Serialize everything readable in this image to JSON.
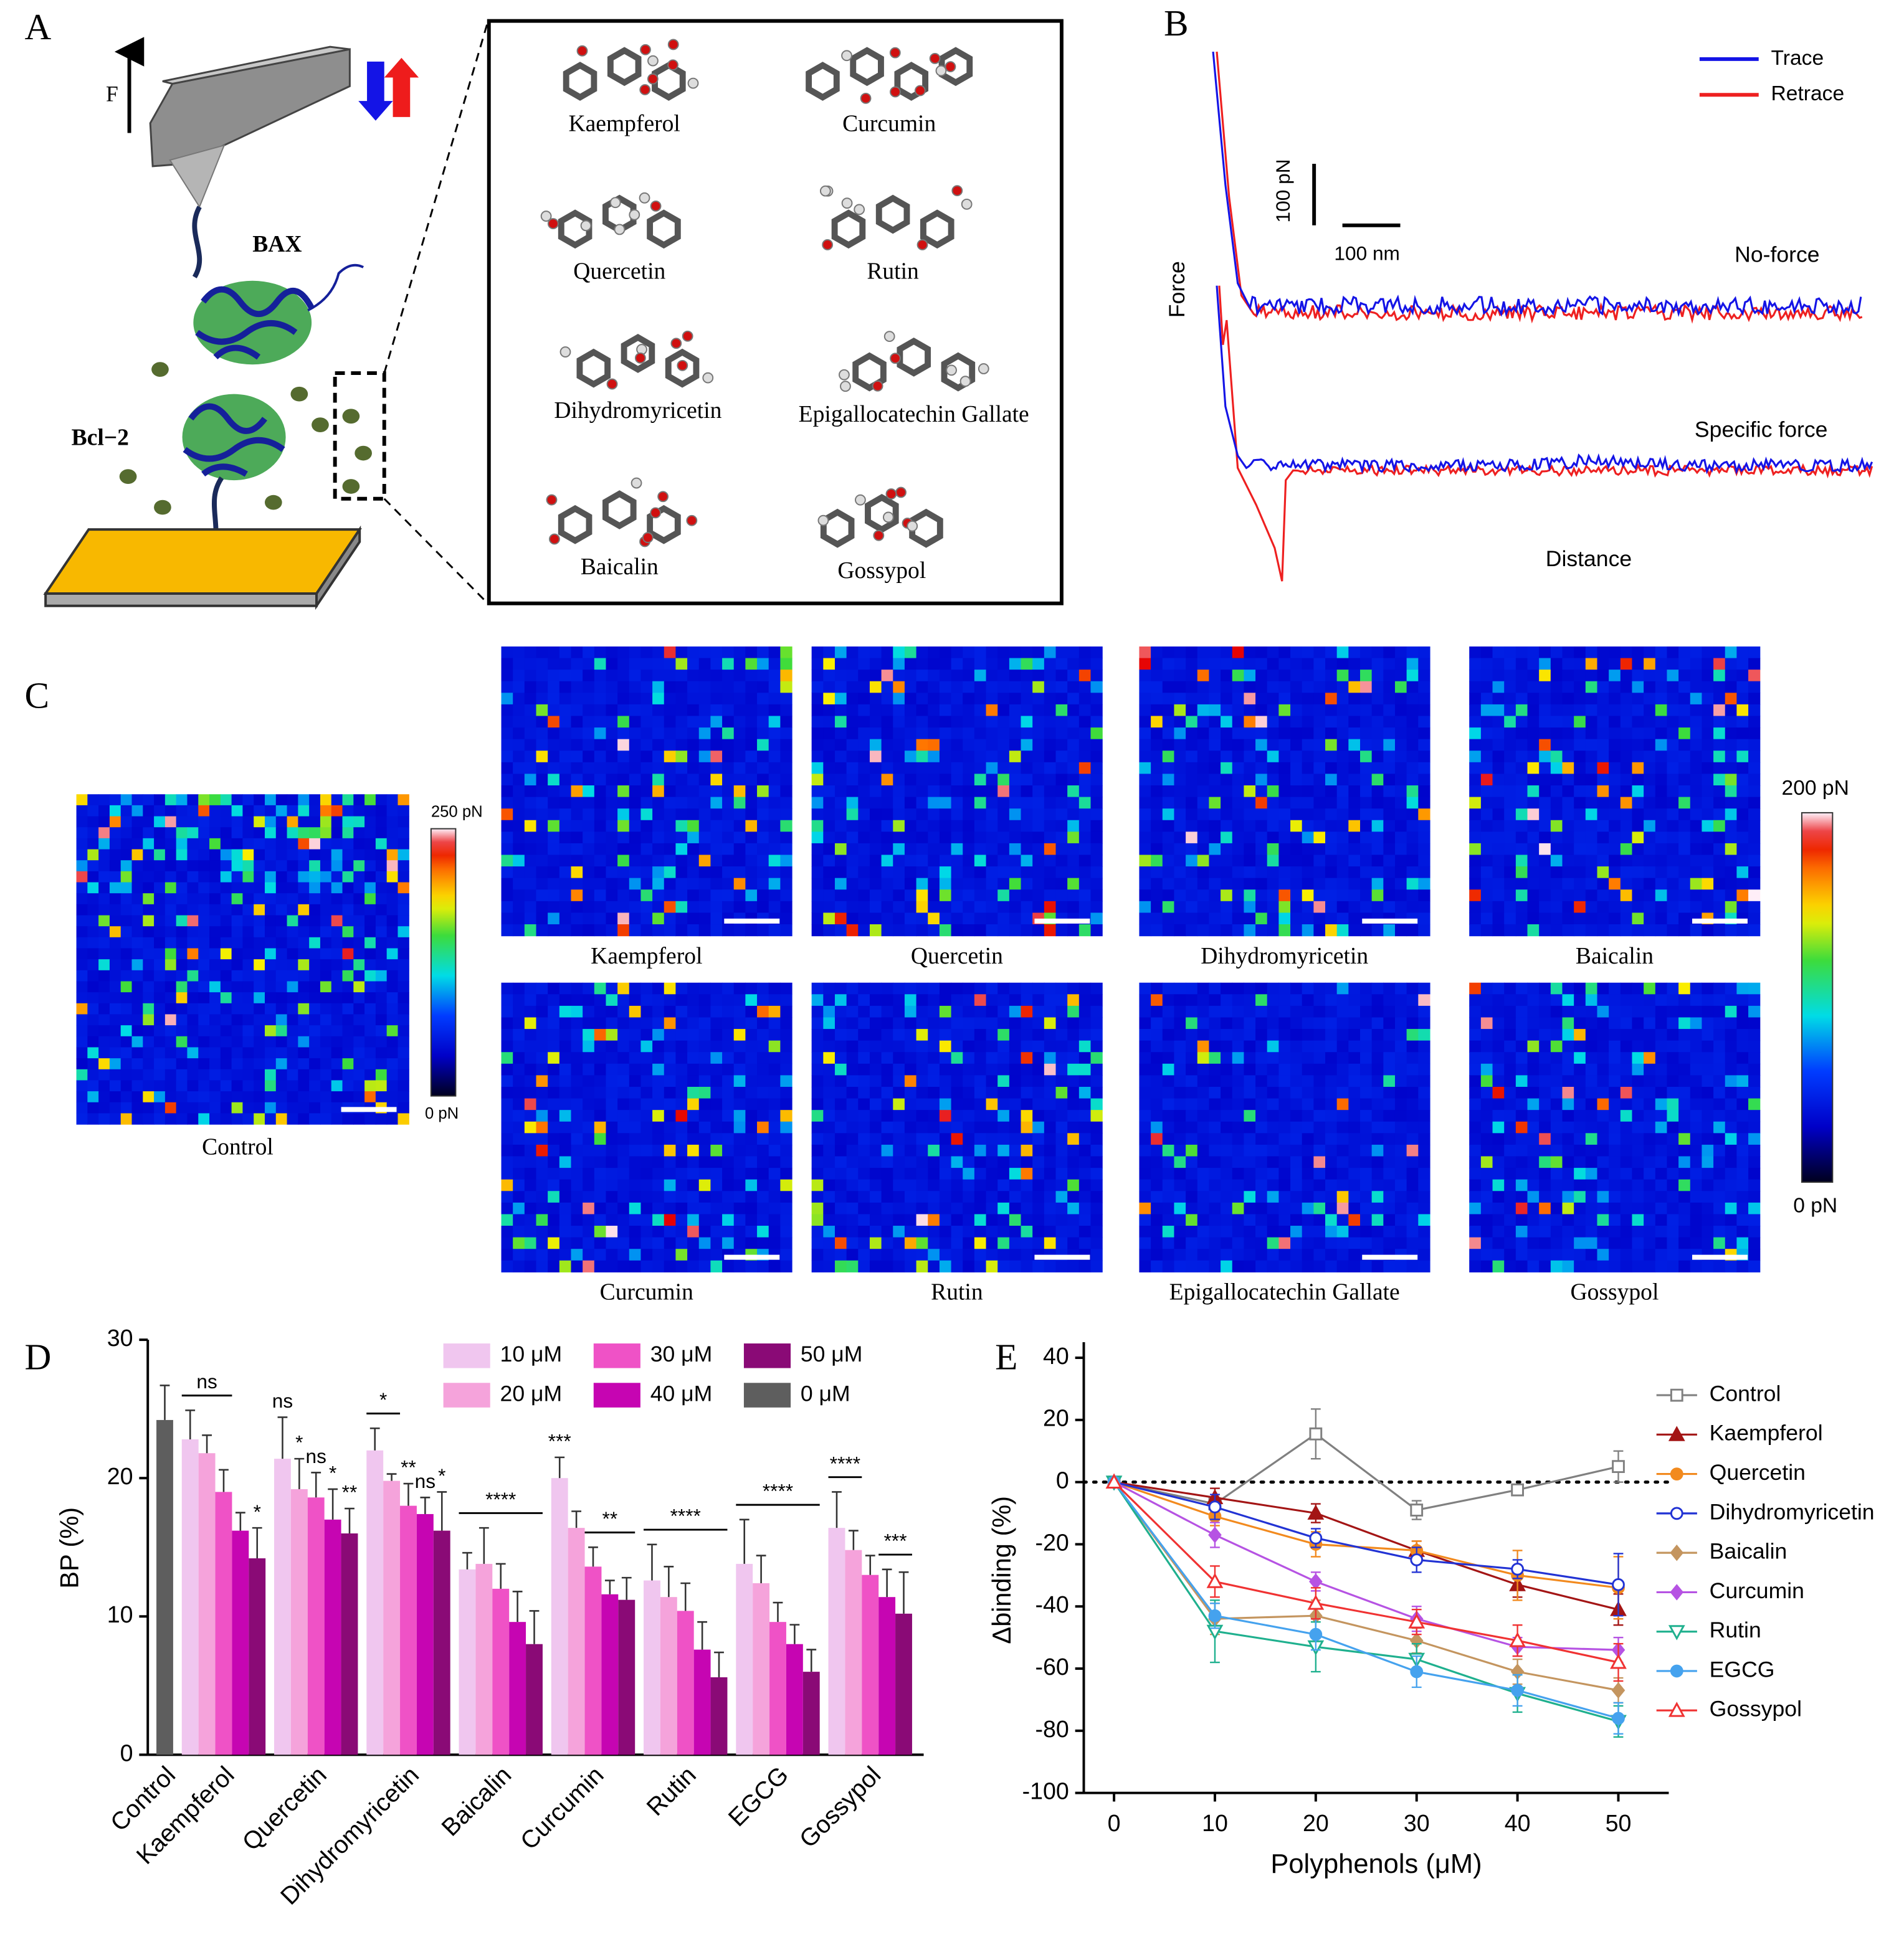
{
  "panels": {
    "a": "A",
    "b": "B",
    "c": "C",
    "d": "D",
    "e": "E"
  },
  "schematic": {
    "force": "F",
    "proteins": [
      "BAX",
      "Bcl−2"
    ],
    "compounds": [
      "Kaempferol",
      "Curcumin",
      "Quercetin",
      "Rutin",
      "Dihydromyricetin",
      "Epigallocatechin Gallate",
      "Baicalin",
      "Gossypol"
    ]
  },
  "force_curves": {
    "series": [
      {
        "name": "Trace",
        "color": "#1414e6"
      },
      {
        "name": "Retrace",
        "color": "#ee2020"
      }
    ],
    "scale_force": "100 pN",
    "scale_distance": "100 nm",
    "curves": [
      "No-force",
      "Specific force"
    ],
    "ylabel": "Force",
    "xlabel": "Distance"
  },
  "force_maps": {
    "control": {
      "name": "Control",
      "max": "250 pN",
      "min": "0 pN"
    },
    "maps": [
      "Kaempferol",
      "Quercetin",
      "Dihydromyricetin",
      "Baicalin",
      "Curcumin",
      "Rutin",
      "Epigallocatechin Gallate",
      "Gossypol"
    ],
    "max": "200 pN",
    "min": "0 pN"
  },
  "chart_data": [
    {
      "type": "bar",
      "ylabel": "BP (%)",
      "categories": [
        "Control",
        "Kaempferol",
        "Quercetin",
        "Dihydromyricetin",
        "Baicalin",
        "Curcumin",
        "Rutin",
        "EGCG",
        "Gossypol"
      ],
      "ylim": [
        0,
        30
      ],
      "yticks": [
        0,
        10,
        20,
        30
      ],
      "series": [
        {
          "name": "10 μM",
          "color": "#f0c6ef",
          "values": [
            null,
            22.8,
            21.4,
            22.0,
            13.4,
            20.0,
            12.6,
            13.8,
            16.4
          ],
          "errors": [
            null,
            2.1,
            3.0,
            1.6,
            1.2,
            1.5,
            2.6,
            3.2,
            2.6
          ]
        },
        {
          "name": "20 μM",
          "color": "#f5a3db",
          "values": [
            null,
            21.8,
            19.2,
            19.8,
            13.8,
            16.4,
            11.4,
            12.4,
            14.8
          ],
          "errors": [
            null,
            1.3,
            2.2,
            0.5,
            2.6,
            1.2,
            2.2,
            2.0,
            1.4
          ]
        },
        {
          "name": "30 μM",
          "color": "#ef52c6",
          "values": [
            null,
            19.0,
            18.6,
            18.0,
            12.0,
            13.6,
            10.4,
            9.6,
            13.0
          ],
          "errors": [
            null,
            1.6,
            1.8,
            1.6,
            1.8,
            1.4,
            2.0,
            1.4,
            1.4
          ]
        },
        {
          "name": "40 μM",
          "color": "#c605b2",
          "values": [
            null,
            16.2,
            17.0,
            17.4,
            9.6,
            11.6,
            7.6,
            8.0,
            11.4
          ],
          "errors": [
            null,
            1.3,
            2.2,
            1.2,
            2.2,
            1.0,
            2.0,
            1.4,
            2.0
          ]
        },
        {
          "name": "50 μM",
          "color": "#8a0a76",
          "values": [
            null,
            14.2,
            16.0,
            16.2,
            8.0,
            11.2,
            5.6,
            6.0,
            10.2
          ],
          "errors": [
            null,
            2.2,
            1.8,
            2.8,
            2.4,
            1.6,
            1.8,
            1.6,
            3.0
          ]
        },
        {
          "name": "0 μM",
          "color": "#5e5e5e",
          "values": [
            24.2,
            null,
            null,
            null,
            null,
            null,
            null,
            null,
            null
          ],
          "errors": [
            2.5,
            null,
            null,
            null,
            null,
            null,
            null,
            null,
            null
          ]
        }
      ],
      "annotations": [
        {
          "category": 1,
          "from": 0,
          "to": 2,
          "text": "ns"
        },
        {
          "category": 1,
          "from": 4,
          "to": 4,
          "text": "*"
        },
        {
          "category": 2,
          "from": 0,
          "to": 0,
          "text": "ns"
        },
        {
          "category": 2,
          "from": 1,
          "to": 1,
          "text": "*"
        },
        {
          "category": 2,
          "from": 2,
          "to": 2,
          "text": "ns"
        },
        {
          "category": 2,
          "from": 3,
          "to": 3,
          "text": "*"
        },
        {
          "category": 2,
          "from": 4,
          "to": 4,
          "text": "**"
        },
        {
          "category": 3,
          "from": 0,
          "to": 1,
          "text": "*"
        },
        {
          "category": 3,
          "from": 2,
          "to": 2,
          "text": "**"
        },
        {
          "category": 3,
          "from": 3,
          "to": 3,
          "text": "ns"
        },
        {
          "category": 3,
          "from": 4,
          "to": 4,
          "text": "*"
        },
        {
          "category": 4,
          "from": 0,
          "to": 4,
          "text": "****"
        },
        {
          "category": 5,
          "from": 0,
          "to": 0,
          "text": "***"
        },
        {
          "category": 5,
          "from": 2,
          "to": 4,
          "text": "**"
        },
        {
          "category": 6,
          "from": 0,
          "to": 4,
          "text": "****"
        },
        {
          "category": 7,
          "from": 0,
          "to": 4,
          "text": "****"
        },
        {
          "category": 8,
          "from": 0,
          "to": 1,
          "text": "****"
        },
        {
          "category": 8,
          "from": 3,
          "to": 4,
          "text": "***"
        }
      ]
    },
    {
      "type": "line",
      "xlabel": "Polyphenols (μM)",
      "ylabel": "Δbinding (%)",
      "x": [
        0,
        10,
        20,
        30,
        40,
        50
      ],
      "xlim": [
        -3,
        55
      ],
      "ylim": [
        -100,
        45
      ],
      "xticks": [
        0,
        10,
        20,
        30,
        40,
        50
      ],
      "yticks": [
        -100,
        -80,
        -60,
        -40,
        -20,
        0,
        20,
        40
      ],
      "reference_line": 0,
      "series": [
        {
          "name": "Control",
          "color": "#808080",
          "marker": "open-square",
          "values": [
            0,
            -7,
            15.5,
            -9,
            -2.5,
            5
          ],
          "errors": [
            0,
            2,
            8,
            3,
            1.5,
            5
          ]
        },
        {
          "name": "Kaempferol",
          "color": "#a31515",
          "marker": "triangle",
          "values": [
            0,
            -5,
            -10,
            -22,
            -33,
            -41
          ],
          "errors": [
            0,
            3,
            3,
            3,
            4,
            5
          ]
        },
        {
          "name": "Quercetin",
          "color": "#f28a1e",
          "marker": "circle",
          "values": [
            0,
            -11,
            -20,
            -22,
            -30,
            -34
          ],
          "errors": [
            0,
            3,
            4,
            3,
            8,
            10
          ]
        },
        {
          "name": "Dihydromyricetin",
          "color": "#2233d4",
          "marker": "open-circle",
          "values": [
            0,
            -8,
            -18,
            -25,
            -28,
            -33
          ],
          "errors": [
            0,
            4,
            3,
            4,
            3,
            10
          ]
        },
        {
          "name": "Baicalin",
          "color": "#c4955f",
          "marker": "diamond",
          "values": [
            0,
            -44,
            -43,
            -51,
            -61,
            -67
          ],
          "errors": [
            0,
            5,
            5,
            4,
            4,
            4
          ]
        },
        {
          "name": "Curcumin",
          "color": "#b653e3",
          "marker": "diamond",
          "values": [
            0,
            -17,
            -32,
            -44,
            -53,
            -54
          ],
          "errors": [
            0,
            4,
            3,
            4,
            3,
            4
          ]
        },
        {
          "name": "Rutin",
          "color": "#1fb08e",
          "marker": "open-triangle-down",
          "values": [
            0,
            -48,
            -53,
            -57,
            -68,
            -77
          ],
          "errors": [
            0,
            10,
            8,
            5,
            6,
            5
          ]
        },
        {
          "name": "EGCG",
          "color": "#45a2ee",
          "marker": "circle",
          "values": [
            0,
            -43,
            -49,
            -61,
            -67,
            -76
          ],
          "errors": [
            0,
            4,
            5,
            5,
            5,
            5
          ]
        },
        {
          "name": "Gossypol",
          "color": "#f03232",
          "marker": "open-triangle",
          "values": [
            0,
            -32,
            -39,
            -45,
            -51,
            -58
          ],
          "errors": [
            0,
            5,
            5,
            4,
            5,
            6
          ]
        }
      ]
    }
  ]
}
